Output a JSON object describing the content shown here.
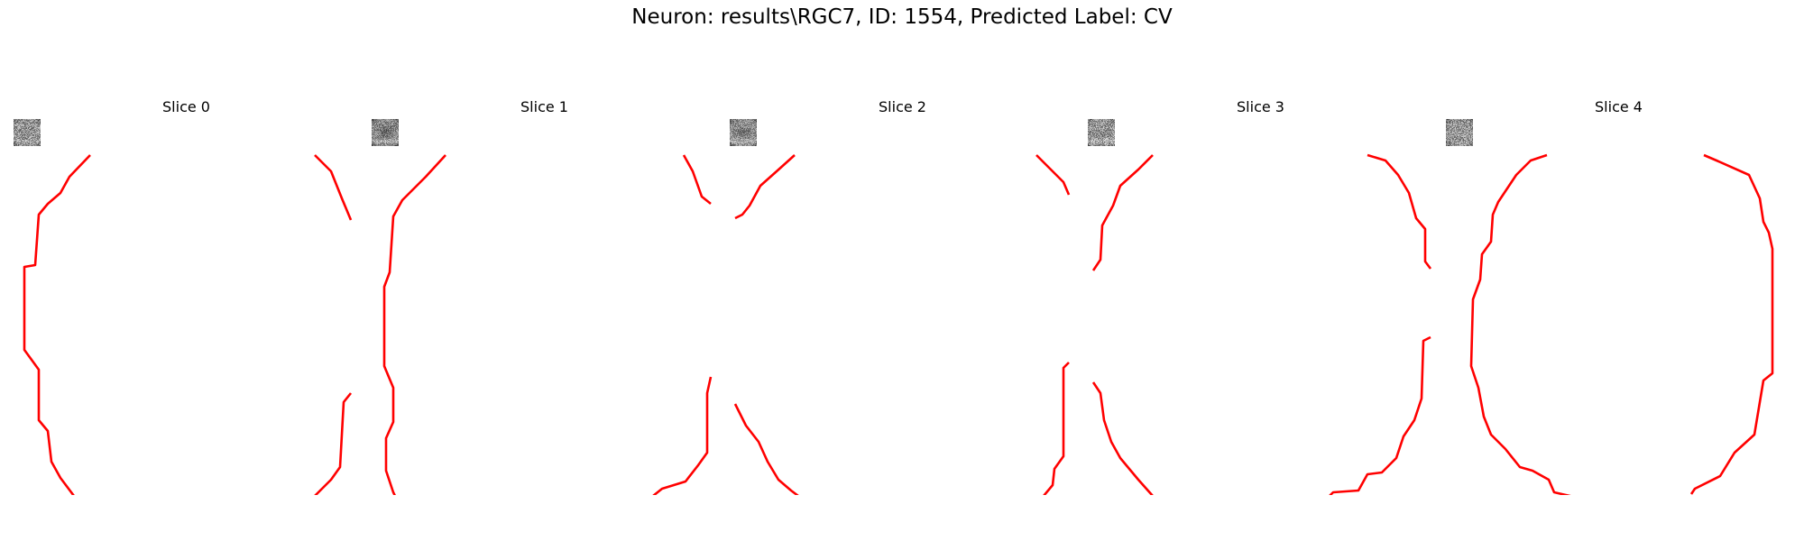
{
  "figure": {
    "title": "Neuron: results\\RGC7, ID: 1554, Predicted Label: CV"
  },
  "colors": {
    "contour": "#ff0000",
    "background": "#ffffff"
  },
  "slices": [
    {
      "title": "Slice 0"
    },
    {
      "title": "Slice 1"
    },
    {
      "title": "Slice 2"
    },
    {
      "title": "Slice 3"
    },
    {
      "title": "Slice 4"
    }
  ]
}
